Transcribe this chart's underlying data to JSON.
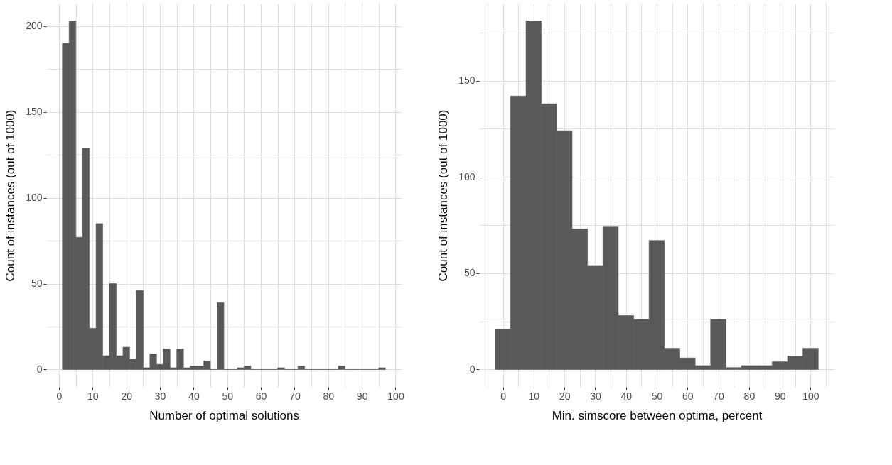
{
  "chart_data": [
    {
      "type": "histogram",
      "xlabel": "Number of optimal solutions",
      "ylabel": "Count of instances (out of 1000)",
      "color": "#595959",
      "bins": [
        1,
        3,
        5,
        7,
        9,
        11,
        13,
        15,
        17,
        19,
        21,
        23,
        25,
        27,
        29,
        31,
        33,
        35,
        37,
        39,
        41,
        43,
        45,
        47,
        49,
        51,
        53,
        55,
        57,
        59,
        61,
        63,
        65,
        67,
        69,
        71,
        73,
        75,
        77,
        79,
        81,
        83,
        85,
        87,
        89,
        91,
        93,
        95,
        97
      ],
      "values": [
        190,
        203,
        77,
        129,
        24,
        85,
        8,
        50,
        8,
        13,
        6,
        46,
        1,
        9,
        3,
        12,
        1,
        12,
        1,
        2,
        2,
        5,
        0,
        39,
        0,
        0,
        1,
        2,
        0,
        0,
        0,
        0,
        1,
        0,
        0,
        2,
        0,
        0,
        0,
        0,
        0,
        2,
        0,
        0,
        0,
        0,
        0,
        1
      ],
      "xlim": [
        -3.8,
        101.8
      ],
      "ylim": [
        -10.15,
        213.15
      ],
      "xticks": [
        0,
        {
          "value": 5,
          "label": null
        },
        10,
        {
          "value": 15,
          "label": null
        },
        20,
        {
          "value": 25,
          "label": null
        },
        30,
        {
          "value": 35,
          "label": null
        },
        40,
        {
          "value": 45,
          "label": null
        },
        50,
        {
          "value": 55,
          "label": null
        },
        60,
        {
          "value": 65,
          "label": null
        },
        70,
        {
          "value": 75,
          "label": null
        },
        80,
        {
          "value": 85,
          "label": null
        },
        90,
        {
          "value": 95,
          "label": null
        },
        100
      ],
      "yticks": [
        0,
        {
          "value": 25,
          "label": null
        },
        50,
        {
          "value": 75,
          "label": null
        },
        100,
        {
          "value": 125,
          "label": null
        },
        150,
        {
          "value": 175,
          "label": null
        },
        200
      ],
      "grid": true
    },
    {
      "type": "histogram",
      "xlabel": "Min. simscore between optima, percent",
      "ylabel": "Count of instances (out of 1000)",
      "color": "#595959",
      "bins": [
        -2.5,
        2.5,
        7.5,
        12.5,
        17.5,
        22.5,
        27.5,
        32.5,
        37.5,
        42.5,
        47.5,
        52.5,
        57.5,
        62.5,
        67.5,
        72.5,
        77.5,
        82.5,
        87.5,
        92.5,
        97.5,
        102.5
      ],
      "values": [
        21,
        142,
        181,
        138,
        124,
        73,
        54,
        74,
        28,
        26,
        67,
        11,
        6,
        2,
        26,
        1,
        2,
        2,
        4,
        7,
        11
      ],
      "xlim": [
        -7.75,
        107.75
      ],
      "ylim": [
        -9.05,
        190.05
      ],
      "xticks": [
        {
          "value": -5,
          "label": null
        },
        0,
        {
          "value": 5,
          "label": null
        },
        10,
        {
          "value": 15,
          "label": null
        },
        20,
        {
          "value": 25,
          "label": null
        },
        30,
        {
          "value": 35,
          "label": null
        },
        40,
        {
          "value": 45,
          "label": null
        },
        50,
        {
          "value": 55,
          "label": null
        },
        60,
        {
          "value": 65,
          "label": null
        },
        70,
        {
          "value": 75,
          "label": null
        },
        80,
        {
          "value": 85,
          "label": null
        },
        90,
        {
          "value": 95,
          "label": null
        },
        100,
        {
          "value": 105,
          "label": null
        }
      ],
      "yticks": [
        0,
        {
          "value": 25,
          "label": null
        },
        50,
        {
          "value": 75,
          "label": null
        },
        100,
        {
          "value": 125,
          "label": null
        },
        150,
        {
          "value": 175,
          "label": null
        }
      ],
      "grid": true
    }
  ]
}
